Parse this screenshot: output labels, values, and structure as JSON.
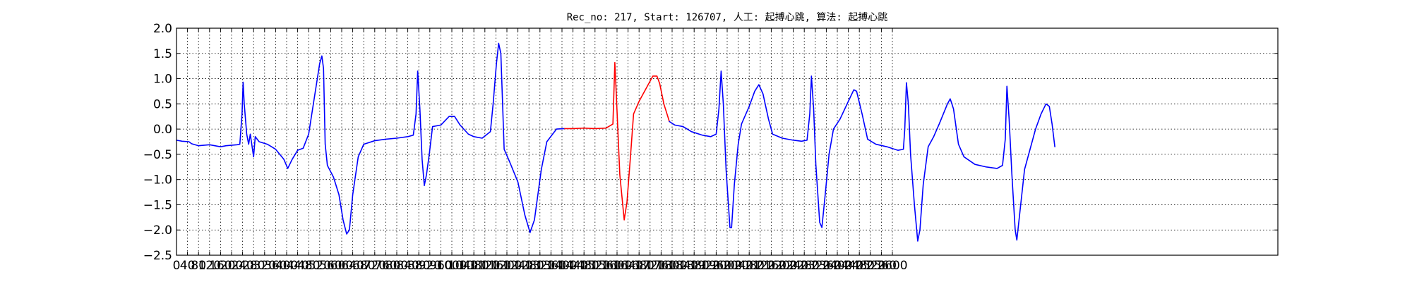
{
  "chart_data": {
    "type": "line",
    "title": "Rec_no: 217, Start: 126707, 人工: 起搏心跳, 算法: 起搏心跳",
    "xlabel": "",
    "ylabel": "",
    "xlim": [
      0,
      4000
    ],
    "ylim": [
      -2.5,
      2.0
    ],
    "grid": true,
    "x_ticks": [
      0,
      40,
      80,
      120,
      160,
      200,
      240,
      280,
      320,
      360,
      400,
      440,
      480,
      520,
      560,
      600,
      640,
      680,
      720,
      760,
      800,
      840,
      880,
      920,
      960,
      1000,
      1040,
      1080,
      1120,
      1160,
      1200,
      1240,
      1280,
      1320,
      1360,
      1400,
      1440,
      1480,
      1520,
      1560,
      1600,
      1640,
      1680,
      1720,
      1760,
      1800,
      1840,
      1880,
      1920,
      1960,
      2000,
      2040,
      2080,
      2120,
      2160,
      2200,
      2240,
      2280,
      2320,
      2360,
      2400,
      2440,
      2480,
      2520,
      2560,
      2600
    ],
    "x_tick_labels": [
      "0",
      "40",
      "80",
      "120",
      "160",
      "200",
      "240",
      "280",
      "320",
      "360",
      "400",
      "440",
      "480",
      "520",
      "560",
      "600",
      "640",
      "680",
      "720",
      "760",
      "800",
      "840",
      "880",
      "920",
      "960",
      "1000",
      "1040",
      "1080",
      "1120",
      "1160",
      "1200",
      "1240",
      "1280",
      "1320",
      "1360",
      "1400",
      "1440",
      "1480",
      "1520",
      "1560",
      "1600",
      "1640",
      "1680",
      "1720",
      "1760",
      "1800",
      "1840",
      "1880",
      "1920",
      "1960",
      "2000",
      "2040",
      "2080",
      "2120",
      "2160",
      "2200",
      "2240",
      "2280",
      "2320",
      "2360",
      "2400",
      "2440",
      "2480",
      "2520",
      "2560",
      "2600"
    ],
    "y_ticks": [
      2.0,
      1.5,
      1.0,
      0.5,
      0.0,
      -0.5,
      -1.0,
      -1.5,
      -2.0,
      -2.5
    ],
    "y_tick_labels": [
      "2.0",
      "1.5",
      "1.0",
      "0.5",
      "0.0",
      "−0.5",
      "−1.0",
      "−1.5",
      "−2.0",
      "−2.5"
    ],
    "series": [
      {
        "color": "#0000ff",
        "points": [
          [
            0,
            -0.22
          ],
          [
            20,
            -0.24
          ],
          [
            45,
            -0.25
          ],
          [
            55,
            -0.29
          ],
          [
            80,
            -0.33
          ],
          [
            120,
            -0.31
          ],
          [
            160,
            -0.35
          ],
          [
            180,
            -0.33
          ],
          [
            220,
            -0.31
          ],
          [
            230,
            -0.3
          ],
          [
            238,
            0.3
          ],
          [
            242,
            0.93
          ],
          [
            246,
            0.5
          ],
          [
            255,
            -0.1
          ],
          [
            262,
            -0.3
          ],
          [
            268,
            -0.1
          ],
          [
            276,
            -0.4
          ],
          [
            280,
            -0.55
          ],
          [
            286,
            -0.15
          ],
          [
            300,
            -0.25
          ],
          [
            330,
            -0.3
          ],
          [
            360,
            -0.4
          ],
          [
            390,
            -0.6
          ],
          [
            404,
            -0.78
          ],
          [
            420,
            -0.6
          ],
          [
            440,
            -0.42
          ],
          [
            460,
            -0.38
          ],
          [
            480,
            -0.1
          ],
          [
            500,
            0.6
          ],
          [
            520,
            1.3
          ],
          [
            528,
            1.45
          ],
          [
            534,
            1.2
          ],
          [
            540,
            -0.3
          ],
          [
            548,
            -0.72
          ],
          [
            570,
            -0.95
          ],
          [
            590,
            -1.3
          ],
          [
            605,
            -1.8
          ],
          [
            618,
            -2.08
          ],
          [
            628,
            -2.0
          ],
          [
            640,
            -1.3
          ],
          [
            660,
            -0.55
          ],
          [
            680,
            -0.3
          ],
          [
            720,
            -0.23
          ],
          [
            760,
            -0.2
          ],
          [
            800,
            -0.18
          ],
          [
            840,
            -0.15
          ],
          [
            860,
            -0.12
          ],
          [
            870,
            0.3
          ],
          [
            876,
            1.15
          ],
          [
            884,
            0.4
          ],
          [
            892,
            -0.6
          ],
          [
            900,
            -1.12
          ],
          [
            908,
            -0.9
          ],
          [
            918,
            -0.5
          ],
          [
            930,
            0.05
          ],
          [
            960,
            0.08
          ],
          [
            990,
            0.25
          ],
          [
            1010,
            0.25
          ],
          [
            1030,
            0.08
          ],
          [
            1060,
            -0.1
          ],
          [
            1080,
            -0.15
          ],
          [
            1110,
            -0.18
          ],
          [
            1140,
            -0.05
          ],
          [
            1150,
            0.5
          ],
          [
            1162,
            1.3
          ],
          [
            1170,
            1.7
          ],
          [
            1178,
            1.5
          ],
          [
            1190,
            -0.4
          ],
          [
            1210,
            -0.65
          ],
          [
            1240,
            -1.05
          ],
          [
            1265,
            -1.7
          ],
          [
            1284,
            -2.05
          ],
          [
            1300,
            -1.8
          ],
          [
            1325,
            -0.8
          ],
          [
            1345,
            -0.25
          ],
          [
            1380,
            0.0
          ],
          [
            1410,
            0.01
          ]
        ]
      },
      {
        "color": "#ff0000",
        "points": [
          [
            1410,
            0.01
          ],
          [
            1440,
            0.01
          ],
          [
            1480,
            0.02
          ],
          [
            1520,
            0.01
          ],
          [
            1560,
            0.02
          ],
          [
            1585,
            0.1
          ],
          [
            1592,
            1.32
          ],
          [
            1598,
            0.6
          ],
          [
            1610,
            -0.9
          ],
          [
            1626,
            -1.8
          ],
          [
            1636,
            -1.45
          ],
          [
            1648,
            -0.6
          ],
          [
            1660,
            0.3
          ],
          [
            1680,
            0.55
          ],
          [
            1710,
            0.85
          ],
          [
            1730,
            1.05
          ],
          [
            1745,
            1.05
          ],
          [
            1755,
            0.9
          ],
          [
            1770,
            0.5
          ],
          [
            1790,
            0.15
          ]
        ]
      },
      {
        "color": "#0000ff",
        "points": [
          [
            1790,
            0.15
          ],
          [
            1810,
            0.08
          ],
          [
            1840,
            0.05
          ],
          [
            1870,
            -0.05
          ],
          [
            1910,
            -0.12
          ],
          [
            1940,
            -0.15
          ],
          [
            1960,
            -0.1
          ],
          [
            1970,
            0.4
          ],
          [
            1978,
            1.15
          ],
          [
            1986,
            0.5
          ],
          [
            1996,
            -0.8
          ],
          [
            2010,
            -1.95
          ],
          [
            2016,
            -1.95
          ],
          [
            2026,
            -1.1
          ],
          [
            2040,
            -0.3
          ],
          [
            2052,
            0.1
          ],
          [
            2080,
            0.45
          ],
          [
            2100,
            0.75
          ],
          [
            2115,
            0.88
          ],
          [
            2130,
            0.7
          ],
          [
            2150,
            0.2
          ],
          [
            2165,
            -0.1
          ],
          [
            2200,
            -0.18
          ],
          [
            2240,
            -0.22
          ],
          [
            2270,
            -0.24
          ],
          [
            2290,
            -0.22
          ],
          [
            2300,
            0.3
          ],
          [
            2306,
            1.05
          ],
          [
            2314,
            0.4
          ],
          [
            2322,
            -0.7
          ],
          [
            2336,
            -1.85
          ],
          [
            2344,
            -1.95
          ],
          [
            2356,
            -1.3
          ],
          [
            2370,
            -0.5
          ],
          [
            2386,
            0.0
          ],
          [
            2410,
            0.2
          ],
          [
            2440,
            0.55
          ],
          [
            2460,
            0.78
          ],
          [
            2470,
            0.75
          ],
          [
            2490,
            0.3
          ],
          [
            2510,
            -0.2
          ],
          [
            2540,
            -0.3
          ],
          [
            2580,
            -0.35
          ],
          [
            2620,
            -0.42
          ],
          [
            2640,
            -0.4
          ],
          [
            2645,
            0.0
          ],
          [
            2651,
            0.92
          ],
          [
            2658,
            0.5
          ],
          [
            2666,
            -0.5
          ],
          [
            2680,
            -1.5
          ],
          [
            2692,
            -2.22
          ],
          [
            2700,
            -2.0
          ],
          [
            2712,
            -1.1
          ],
          [
            2730,
            -0.35
          ],
          [
            2750,
            -0.15
          ],
          [
            2770,
            0.1
          ],
          [
            2800,
            0.5
          ],
          [
            2810,
            0.6
          ],
          [
            2822,
            0.4
          ],
          [
            2840,
            -0.3
          ],
          [
            2860,
            -0.55
          ],
          [
            2900,
            -0.7
          ],
          [
            2940,
            -0.75
          ],
          [
            2980,
            -0.78
          ],
          [
            3000,
            -0.72
          ],
          [
            3010,
            -0.2
          ],
          [
            3016,
            0.85
          ],
          [
            3024,
            0.2
          ],
          [
            3034,
            -0.9
          ],
          [
            3046,
            -2.0
          ],
          [
            3052,
            -2.2
          ],
          [
            3062,
            -1.7
          ],
          [
            3080,
            -0.8
          ],
          [
            3100,
            -0.4
          ],
          [
            3120,
            0.0
          ],
          [
            3140,
            0.3
          ],
          [
            3158,
            0.5
          ],
          [
            3170,
            0.45
          ],
          [
            3180,
            0.1
          ],
          [
            3190,
            -0.35
          ]
        ]
      }
    ]
  }
}
